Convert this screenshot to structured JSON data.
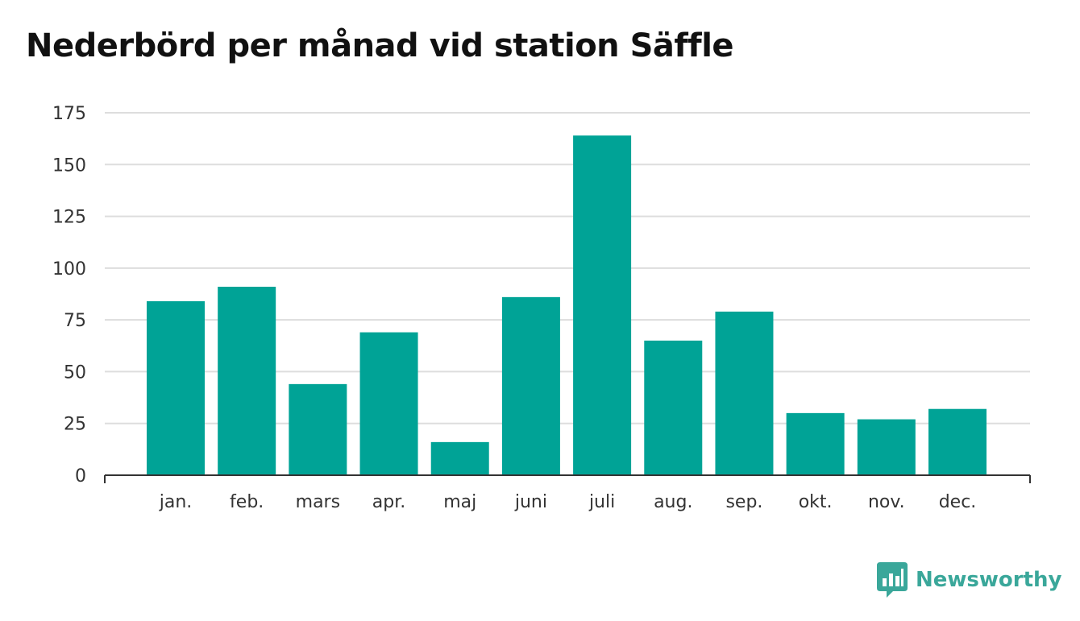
{
  "chart_data": {
    "type": "bar",
    "title": "Nederbörd per månad vid station Säffle",
    "categories": [
      "jan.",
      "feb.",
      "mars",
      "apr.",
      "maj",
      "juni",
      "juli",
      "aug.",
      "sep.",
      "okt.",
      "nov.",
      "dec."
    ],
    "values": [
      84,
      91,
      44,
      69,
      16,
      86,
      164,
      65,
      79,
      30,
      27,
      32
    ],
    "xlabel": "",
    "ylabel": "",
    "ylim": [
      0,
      175
    ],
    "yticks": [
      0,
      25,
      50,
      75,
      100,
      125,
      150,
      175
    ],
    "grid": true,
    "bar_color": "#00a396"
  },
  "branding": {
    "logo_text": "Newsworthy",
    "logo_color": "#3aa79a",
    "logo_icon": "bar-chart-speech-bubble-icon"
  }
}
